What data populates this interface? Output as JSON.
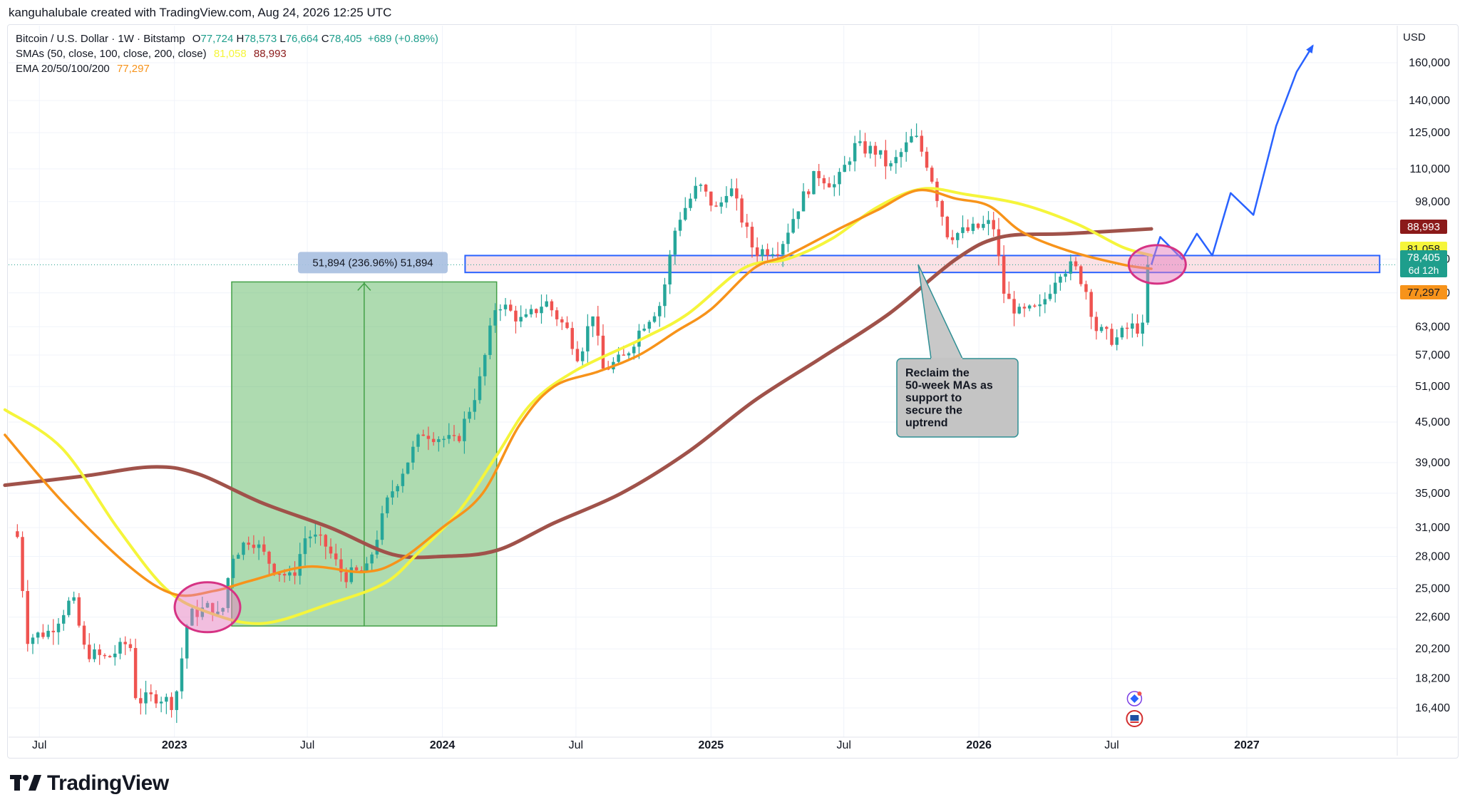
{
  "header": {
    "text": "kanguhalubale created with TradingView.com, Aug 24, 2026 12:25 UTC"
  },
  "legend": {
    "symbol": "Bitcoin / U.S. Dollar · 1W · Bitstamp",
    "ohlc": {
      "o_label": "O",
      "o": "77,724",
      "h_label": "H",
      "h": "78,573",
      "l_label": "L",
      "l": "76,664",
      "c_label": "C",
      "c": "78,405",
      "change": "+689 (+0.89%)"
    },
    "sma_label": "SMAs (50, close, 100, close, 200, close)",
    "sma_values": [
      "81,058",
      "88,993"
    ],
    "ema_label": "EMA 20/50/100/200",
    "ema_value": "77,297"
  },
  "currency": "USD",
  "brand": {
    "text": "TradingView"
  },
  "colors": {
    "up": "#26a69a",
    "down": "#ef5350",
    "sma50": "#f5f53b",
    "sma100": "#a0524a",
    "ema": "#f7931a",
    "projection": "#2962ff",
    "green_zone": "#4caf50",
    "zone_fill": "#f8c8d0",
    "zone_border": "#2962ff",
    "circle": "#d63384"
  },
  "chart_data": {
    "type": "candlestick",
    "timeframe": "1W",
    "y_scale": "log",
    "y_ticks": [
      16400,
      18200,
      20200,
      22600,
      25000,
      28000,
      31000,
      35000,
      39000,
      45000,
      51000,
      57000,
      63000,
      71000,
      80000,
      98000,
      110000,
      125000,
      140000,
      160000
    ],
    "y_tick_labels": [
      "16,400",
      "18,200",
      "20,200",
      "22,600",
      "25,000",
      "28,000",
      "31,000",
      "35,000",
      "39,000",
      "45,000",
      "51,000",
      "57,000",
      "63,000",
      "71,000",
      "80,000",
      "98,000",
      "110,000",
      "125,000",
      "140,000",
      "160,000"
    ],
    "x_ticks": [
      {
        "date": "2022-07-01",
        "label": "Jul",
        "bold": false
      },
      {
        "date": "2023-01-01",
        "label": "2023",
        "bold": true
      },
      {
        "date": "2023-07-01",
        "label": "Jul",
        "bold": false
      },
      {
        "date": "2024-01-01",
        "label": "2024",
        "bold": true
      },
      {
        "date": "2024-07-01",
        "label": "Jul",
        "bold": false
      },
      {
        "date": "2025-01-01",
        "label": "2025",
        "bold": true
      },
      {
        "date": "2025-07-01",
        "label": "Jul",
        "bold": false
      },
      {
        "date": "2026-01-01",
        "label": "2026",
        "bold": true
      },
      {
        "date": "2026-07-01",
        "label": "Jul",
        "bold": false
      },
      {
        "date": "2027-01-01",
        "label": "2027",
        "bold": true
      }
    ],
    "price_tags": [
      {
        "value": 88993,
        "label": "88,993",
        "bg": "#8b1a1a",
        "fg": "#ffffff"
      },
      {
        "value": 81058,
        "label": "81,058",
        "bg": "#f5f53b",
        "fg": "#131722"
      },
      {
        "value": 78405,
        "label": "78,405",
        "sub": "6d 12h",
        "bg": "#1e9e8c",
        "fg": "#ffffff"
      },
      {
        "value": 77297,
        "label": "77,297",
        "bg": "#f7931a",
        "fg": "#131722"
      }
    ],
    "close_path": [
      [
        "2022-06-01",
        30000
      ],
      [
        "2022-06-15",
        21000
      ],
      [
        "2022-07-15",
        21500
      ],
      [
        "2022-08-15",
        24200
      ],
      [
        "2022-09-01",
        20000
      ],
      [
        "2022-10-01",
        19500
      ],
      [
        "2022-11-01",
        20800
      ],
      [
        "2022-11-10",
        16800
      ],
      [
        "2022-12-10",
        17100
      ],
      [
        "2023-01-01",
        16600
      ],
      [
        "2023-01-20",
        22700
      ],
      [
        "2023-02-20",
        23500
      ],
      [
        "2023-03-05",
        22300
      ],
      [
        "2023-03-20",
        28000
      ],
      [
        "2023-04-15",
        30000
      ],
      [
        "2023-05-15",
        27000
      ],
      [
        "2023-06-10",
        25800
      ],
      [
        "2023-06-30",
        30400
      ],
      [
        "2023-07-25",
        29200
      ],
      [
        "2023-08-20",
        26100
      ],
      [
        "2023-09-20",
        26700
      ],
      [
        "2023-10-20",
        34500
      ],
      [
        "2023-12-05",
        43500
      ],
      [
        "2024-01-20",
        41800
      ],
      [
        "2024-02-20",
        51500
      ],
      [
        "2024-03-15",
        69000
      ],
      [
        "2024-04-20",
        64000
      ],
      [
        "2024-05-20",
        69000
      ],
      [
        "2024-06-20",
        62000
      ],
      [
        "2024-07-05",
        56500
      ],
      [
        "2024-07-25",
        67000
      ],
      [
        "2024-08-05",
        54000
      ],
      [
        "2024-09-05",
        56500
      ],
      [
        "2024-09-30",
        63500
      ],
      [
        "2024-10-25",
        68500
      ],
      [
        "2024-11-15",
        91000
      ],
      [
        "2024-12-15",
        104000
      ],
      [
        "2025-01-10",
        94500
      ],
      [
        "2025-01-25",
        104500
      ],
      [
        "2025-03-01",
        82000
      ],
      [
        "2025-04-05",
        83500
      ],
      [
        "2025-05-01",
        97000
      ],
      [
        "2025-05-25",
        108500
      ],
      [
        "2025-06-20",
        103500
      ],
      [
        "2025-07-15",
        119000
      ],
      [
        "2025-08-15",
        117000
      ],
      [
        "2025-09-01",
        110000
      ],
      [
        "2025-10-05",
        124000
      ],
      [
        "2025-10-25",
        110500
      ],
      [
        "2025-11-20",
        87000
      ],
      [
        "2025-12-20",
        88500
      ],
      [
        "2026-01-20",
        91000
      ],
      [
        "2026-02-05",
        70000
      ],
      [
        "2026-02-25",
        66000
      ],
      [
        "2026-03-25",
        67000
      ],
      [
        "2026-04-20",
        77000
      ],
      [
        "2026-05-10",
        78000
      ],
      [
        "2026-05-25",
        73000
      ],
      [
        "2026-06-10",
        62500
      ],
      [
        "2026-07-05",
        60000
      ],
      [
        "2026-07-25",
        63000
      ],
      [
        "2026-08-15",
        62500
      ],
      [
        "2026-08-24",
        78405
      ]
    ],
    "sma50": [
      [
        "2022-05-15",
        47000
      ],
      [
        "2022-08-01",
        41000
      ],
      [
        "2022-10-15",
        31000
      ],
      [
        "2022-12-20",
        25000
      ],
      [
        "2023-02-15",
        23000
      ],
      [
        "2023-05-01",
        22100
      ],
      [
        "2023-08-01",
        23700
      ],
      [
        "2023-10-15",
        25500
      ],
      [
        "2023-12-01",
        28500
      ],
      [
        "2024-01-25",
        33000
      ],
      [
        "2024-03-15",
        40000
      ],
      [
        "2024-05-01",
        48000
      ],
      [
        "2024-07-01",
        54000
      ],
      [
        "2024-10-01",
        60500
      ],
      [
        "2024-12-01",
        66000
      ],
      [
        "2025-02-15",
        77500
      ],
      [
        "2025-04-15",
        80000
      ],
      [
        "2025-06-15",
        86000
      ],
      [
        "2025-08-15",
        96000
      ],
      [
        "2025-10-15",
        102500
      ],
      [
        "2025-12-15",
        100500
      ],
      [
        "2026-03-01",
        97000
      ],
      [
        "2026-05-15",
        90500
      ],
      [
        "2026-07-15",
        83500
      ],
      [
        "2026-08-24",
        81058
      ]
    ],
    "sma100": [
      [
        "2022-05-15",
        36000
      ],
      [
        "2022-09-01",
        37200
      ],
      [
        "2022-12-01",
        38400
      ],
      [
        "2023-02-01",
        37500
      ],
      [
        "2023-05-01",
        33800
      ],
      [
        "2023-08-01",
        31000
      ],
      [
        "2023-10-25",
        28200
      ],
      [
        "2024-01-01",
        28000
      ],
      [
        "2024-03-15",
        28600
      ],
      [
        "2024-06-01",
        31500
      ],
      [
        "2024-09-01",
        35000
      ],
      [
        "2024-12-01",
        40500
      ],
      [
        "2025-03-01",
        48500
      ],
      [
        "2025-06-01",
        56500
      ],
      [
        "2025-09-01",
        66000
      ],
      [
        "2025-12-01",
        80000
      ],
      [
        "2026-02-01",
        86500
      ],
      [
        "2026-05-01",
        87500
      ],
      [
        "2026-08-24",
        88993
      ]
    ],
    "ema": [
      [
        "2022-05-15",
        43000
      ],
      [
        "2022-08-01",
        34000
      ],
      [
        "2022-11-01",
        27000
      ],
      [
        "2023-01-01",
        24500
      ],
      [
        "2023-02-25",
        24800
      ],
      [
        "2023-04-15",
        25700
      ],
      [
        "2023-07-01",
        27000
      ],
      [
        "2023-09-15",
        26500
      ],
      [
        "2023-11-01",
        27500
      ],
      [
        "2024-01-01",
        31000
      ],
      [
        "2024-02-25",
        35000
      ],
      [
        "2024-04-15",
        44500
      ],
      [
        "2024-06-01",
        51000
      ],
      [
        "2024-08-01",
        53800
      ],
      [
        "2024-09-25",
        57000
      ],
      [
        "2024-11-15",
        62000
      ],
      [
        "2025-01-01",
        67000
      ],
      [
        "2025-03-01",
        77500
      ],
      [
        "2025-04-15",
        81000
      ],
      [
        "2025-06-20",
        88500
      ],
      [
        "2025-08-15",
        95000
      ],
      [
        "2025-10-10",
        102000
      ],
      [
        "2025-12-01",
        99000
      ],
      [
        "2026-01-15",
        96500
      ],
      [
        "2026-03-01",
        88000
      ],
      [
        "2026-05-01",
        82500
      ],
      [
        "2026-07-15",
        78500
      ],
      [
        "2026-08-24",
        77297
      ]
    ],
    "projection": [
      [
        "2026-08-24",
        78405
      ],
      [
        "2026-09-05",
        86500
      ],
      [
        "2026-10-05",
        80000
      ],
      [
        "2026-10-25",
        87500
      ],
      [
        "2026-11-15",
        81000
      ],
      [
        "2026-12-10",
        101000
      ],
      [
        "2027-01-10",
        93500
      ],
      [
        "2027-02-10",
        128000
      ],
      [
        "2027-03-10",
        155000
      ],
      [
        "2027-04-01",
        170000
      ]
    ],
    "resistance_zone": {
      "high": 81000,
      "low": 76300,
      "from": "2024-02-01",
      "to": "2027-07-01"
    },
    "dotted_level": 78405,
    "measure_box": {
      "from": "2023-03-20",
      "to": "2024-03-15",
      "low": 21900,
      "high": 73800
    },
    "measure_label": "51,894 (236.96%) 51,894",
    "annotation": "Reclaim the 50-week MAs as support to secure the uptrend",
    "circles": [
      {
        "date": "2023-02-15",
        "value": 23400
      },
      {
        "date": "2026-09-01",
        "value": 78500
      }
    ]
  }
}
